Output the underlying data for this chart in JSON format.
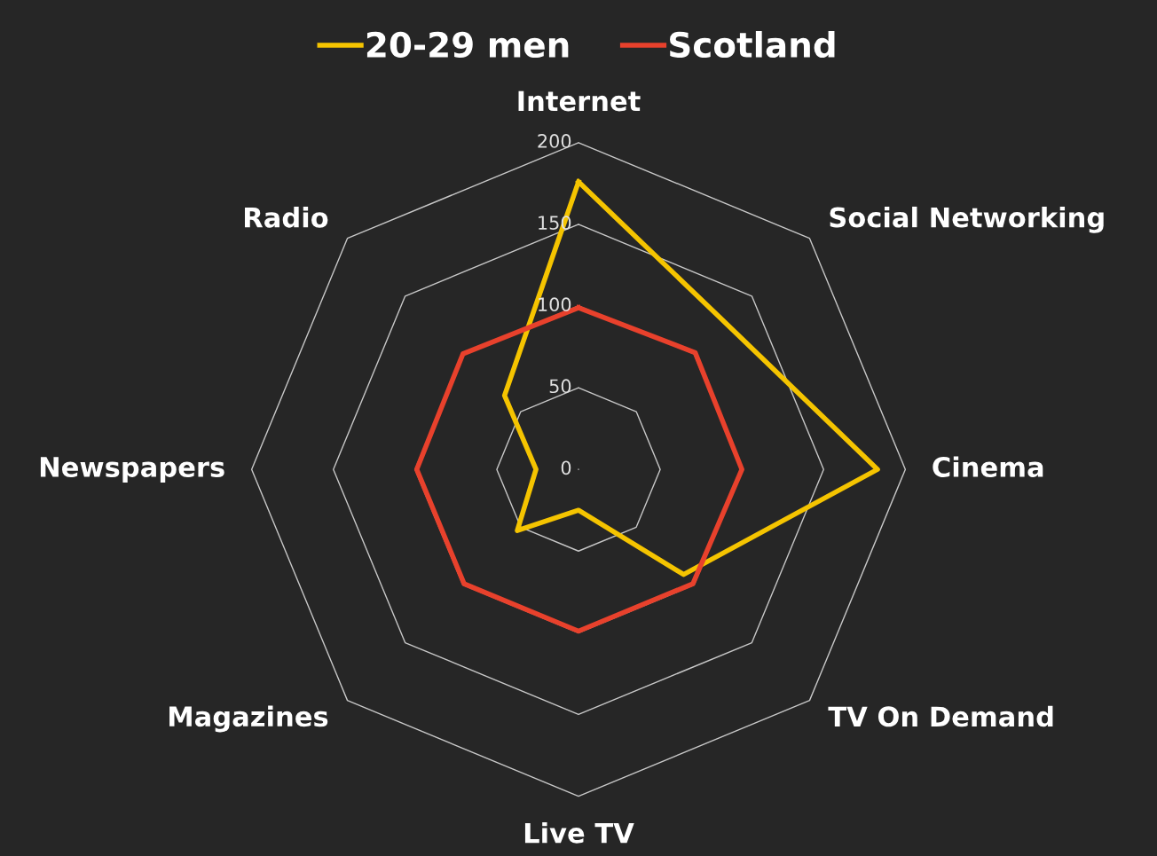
{
  "chart_data": {
    "type": "radar",
    "categories": [
      "Internet",
      "Social Networking",
      "Cinema",
      "TV On Demand",
      "Live TV",
      "Magazines",
      "Newspapers",
      "Radio"
    ],
    "series": [
      {
        "name": "20-29 men",
        "color": "#f5c400",
        "values": [
          176,
          127,
          183,
          91,
          25,
          53,
          26,
          64
        ]
      },
      {
        "name": "Scotland",
        "color": "#e8412c",
        "values": [
          99,
          101,
          100,
          99,
          99,
          99,
          99,
          100
        ]
      }
    ],
    "ylim": [
      0,
      200
    ],
    "yticks": [
      0,
      50,
      100,
      150,
      200
    ],
    "grid": true,
    "legend": "top",
    "marker": "none",
    "line_style": "solid"
  }
}
